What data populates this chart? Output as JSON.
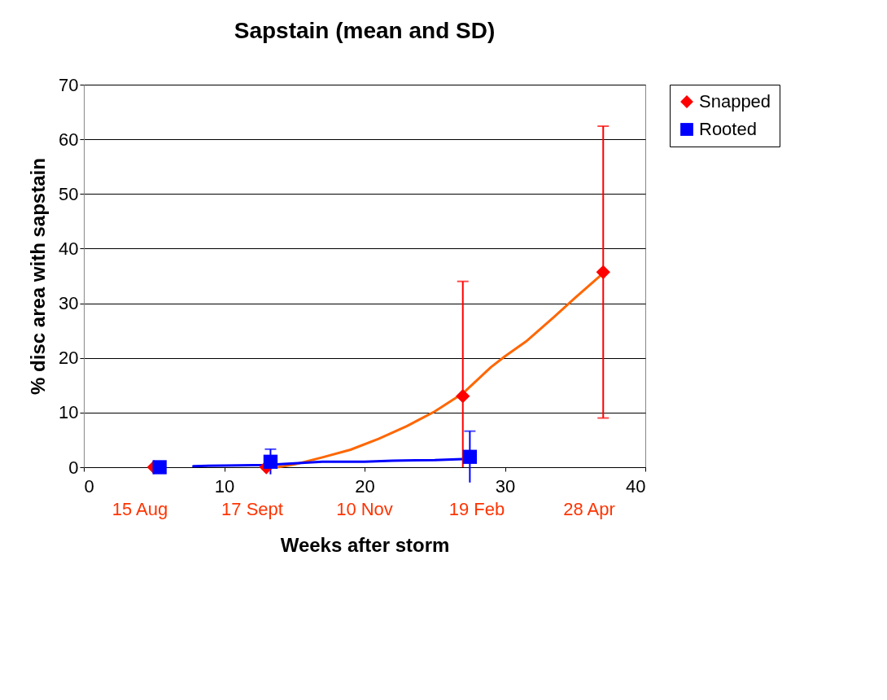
{
  "chart_data": {
    "type": "scatter",
    "title": "Sapstain (mean and SD)",
    "xlabel": "Weeks after storm",
    "ylabel": "% disc area with sapstain",
    "xlim": [
      0,
      40
    ],
    "xticks": [
      0,
      10,
      20,
      30,
      40
    ],
    "annotations": [
      "15 Aug",
      "17 Sept",
      "10 Nov",
      "19 Feb",
      "28 Apr"
    ],
    "ylim": [
      0,
      70
    ],
    "yticks": [
      0,
      10,
      20,
      30,
      40,
      50,
      60,
      70
    ],
    "grid": "y",
    "legend": "right",
    "series": [
      {
        "type": "line",
        "color": "#ff6600",
        "x": [
          13.8,
          15,
          17,
          19,
          21,
          23,
          25,
          27,
          29,
          30,
          31.5,
          33.5,
          35,
          37
        ],
        "values": [
          0,
          0.5,
          1.8,
          3.2,
          5.2,
          7.5,
          10.2,
          13.5,
          18.3,
          20.3,
          23,
          27.5,
          31,
          35.5
        ]
      },
      {
        "type": "line",
        "color": "#0000ff",
        "x": [
          7.8,
          10,
          13,
          15,
          17,
          20,
          22,
          25,
          27
        ],
        "values": [
          0.2,
          0.3,
          0.4,
          0.7,
          1,
          1,
          1.2,
          1.3,
          1.5
        ]
      },
      {
        "name": "Snapped",
        "color": "#ff0000",
        "marker": "diamond",
        "x": [
          5,
          13,
          27,
          37
        ],
        "values": [
          0,
          0,
          13,
          35.7
        ],
        "errors": [
          null,
          null,
          [
            0,
            34
          ],
          26.7
        ]
      },
      {
        "name": "Rooted",
        "color": "#0000ff",
        "marker": "square",
        "x": [
          5.4,
          13.3,
          27.5
        ],
        "values": [
          0,
          1,
          1.9
        ],
        "errors": [
          null,
          2.3,
          4.7
        ]
      }
    ]
  }
}
